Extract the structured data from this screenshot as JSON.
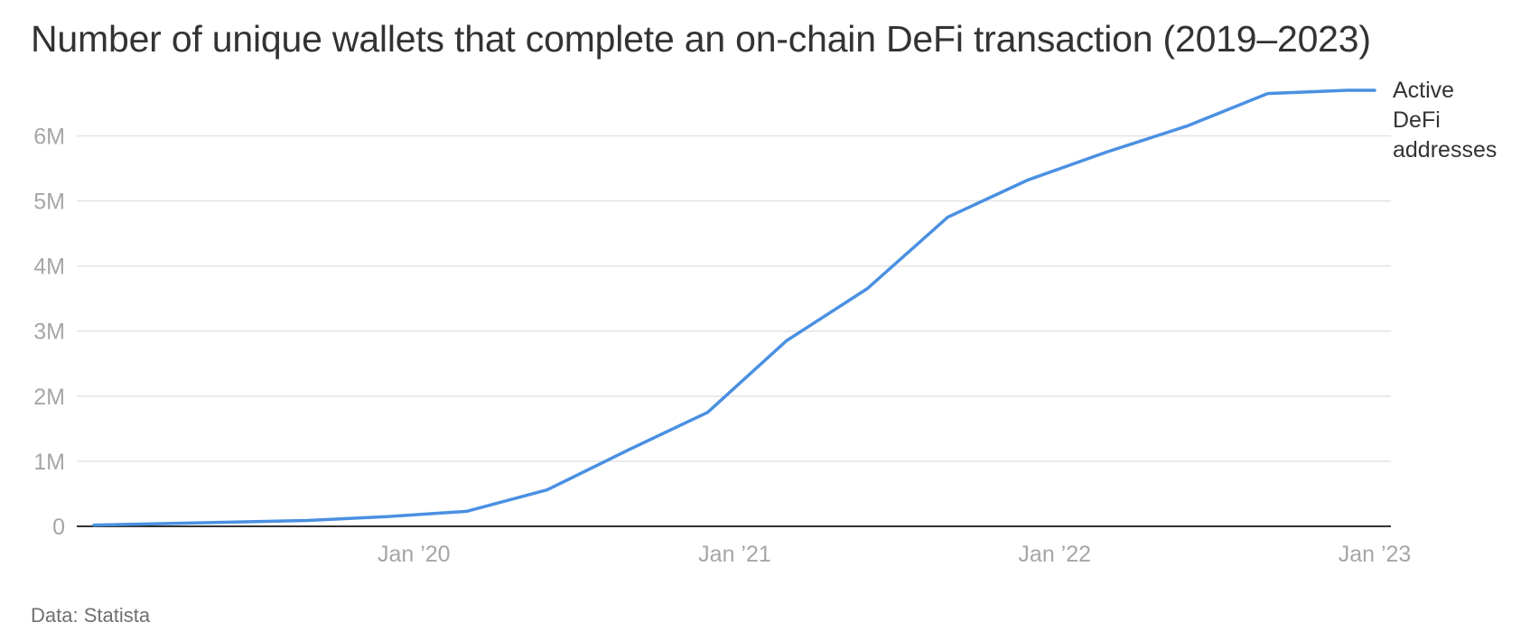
{
  "source": {
    "label": "Data:",
    "value": "Statista"
  },
  "colors": {
    "line": "#4a90e2",
    "grid": "#e3e3e3",
    "axis": "#333333",
    "tick_text": "#a6a6a6"
  },
  "chart_data": {
    "type": "line",
    "title": "Number of unique wallets that complete an on-chain DeFi transaction (2019–2023)",
    "xlabel": "",
    "ylabel": "",
    "x_ticks": [
      {
        "date": "2020-01-01",
        "label": "Jan ’20"
      },
      {
        "date": "2021-01-01",
        "label": "Jan ’21"
      },
      {
        "date": "2022-01-01",
        "label": "Jan ’22"
      },
      {
        "date": "2023-01-01",
        "label": "Jan ’23"
      }
    ],
    "xlim": [
      "2019-01-01",
      "2023-01-01"
    ],
    "y_ticks": [
      {
        "value": 0,
        "label": "0"
      },
      {
        "value": 1000000,
        "label": "1M"
      },
      {
        "value": 2000000,
        "label": "2M"
      },
      {
        "value": 3000000,
        "label": "3M"
      },
      {
        "value": 4000000,
        "label": "4M"
      },
      {
        "value": 5000000,
        "label": "5M"
      },
      {
        "value": 6000000,
        "label": "6M"
      }
    ],
    "ylim": [
      0,
      6700000
    ],
    "grid": true,
    "legend": "end-of-line label",
    "series": [
      {
        "name": "Active DeFi addresses",
        "name_lines": [
          "Active",
          "DeFi",
          "addresses"
        ],
        "x": [
          "2019-01-01",
          "2019-09-01",
          "2019-12-01",
          "2020-03-01",
          "2020-06-01",
          "2020-09-01",
          "2020-12-01",
          "2021-03-01",
          "2021-06-01",
          "2021-09-01",
          "2021-12-01",
          "2022-03-01",
          "2022-06-01",
          "2022-09-01",
          "2022-12-01",
          "2023-01-01"
        ],
        "values": [
          20000,
          90000,
          150000,
          230000,
          560000,
          1170000,
          1750000,
          2850000,
          3650000,
          4750000,
          5320000,
          5750000,
          6150000,
          6650000,
          6700000,
          6700000
        ]
      }
    ]
  }
}
